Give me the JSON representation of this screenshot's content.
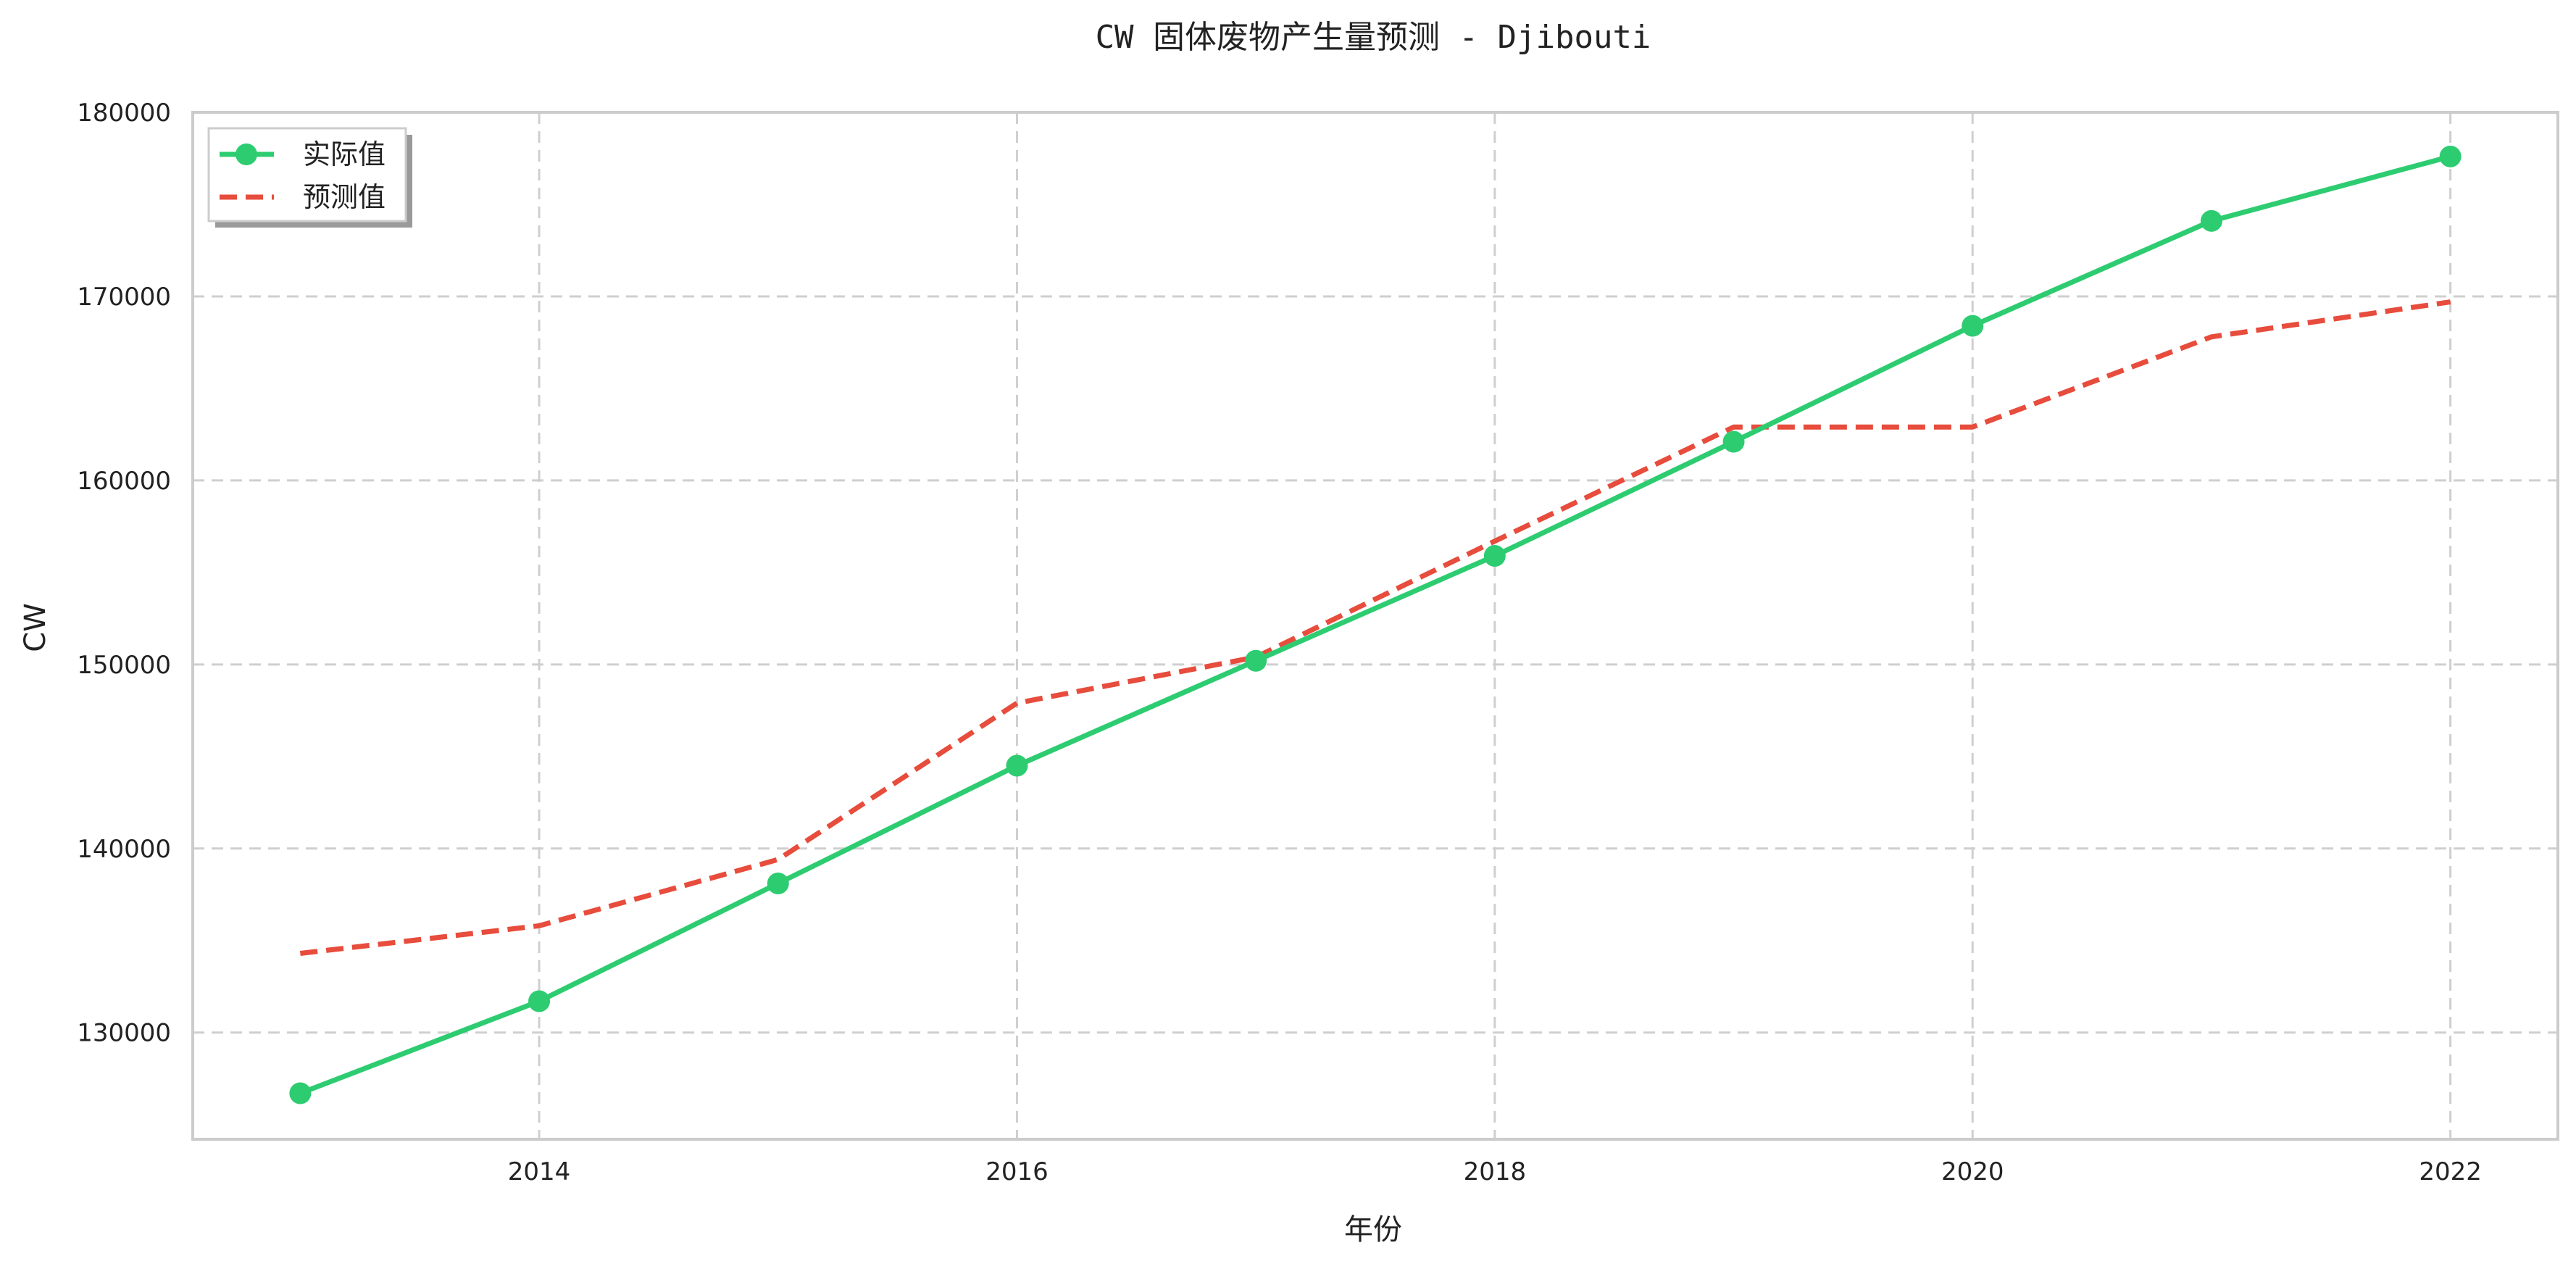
{
  "chart_data": {
    "type": "line",
    "title": "CW 固体废物产生量预测 - Djibouti",
    "xlabel": "年份",
    "ylabel": "CW",
    "x": [
      2013,
      2014,
      2015,
      2016,
      2017,
      2018,
      2019,
      2020,
      2021,
      2022
    ],
    "xlim": [
      2012.55,
      2022.45
    ],
    "ylim": [
      124200,
      180000
    ],
    "xticks": [
      2014,
      2016,
      2018,
      2020,
      2022
    ],
    "yticks": [
      130000,
      140000,
      150000,
      160000,
      170000,
      180000
    ],
    "grid": true,
    "legend_position": "top-left",
    "series": [
      {
        "name": "实际值",
        "color": "#2ecc71",
        "style": "solid-marker",
        "values": [
          126700,
          131700,
          138100,
          144500,
          150200,
          155900,
          162100,
          168400,
          174100,
          177600
        ]
      },
      {
        "name": "预测值",
        "color": "#e74c3c",
        "style": "dashed",
        "values": [
          134300,
          135800,
          139400,
          147900,
          150400,
          156700,
          162900,
          162900,
          167800,
          169700
        ]
      }
    ]
  }
}
